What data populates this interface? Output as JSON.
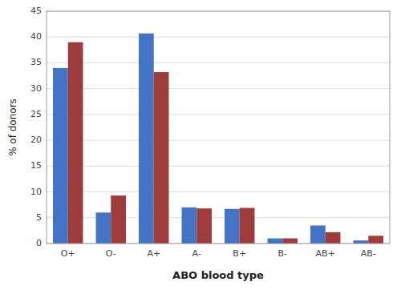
{
  "chart_data": {
    "type": "bar",
    "categories": [
      "O+",
      "O-",
      "A+",
      "A-",
      "B+",
      "B-",
      "AB+",
      "AB-"
    ],
    "series": [
      {
        "color": "#4472C4",
        "values": [
          34.0,
          6.0,
          40.7,
          7.0,
          6.7,
          1.0,
          3.5,
          0.6
        ]
      },
      {
        "color": "#9E3C3C",
        "values": [
          39.0,
          9.3,
          33.2,
          6.8,
          6.9,
          1.0,
          2.2,
          1.5
        ]
      }
    ],
    "xlabel": "ABO blood type",
    "ylabel": "% of donors",
    "ylim": [
      0,
      45
    ],
    "yticks": [
      0,
      5,
      10,
      15,
      20,
      25,
      30,
      35,
      40,
      45
    ],
    "grid": true
  }
}
